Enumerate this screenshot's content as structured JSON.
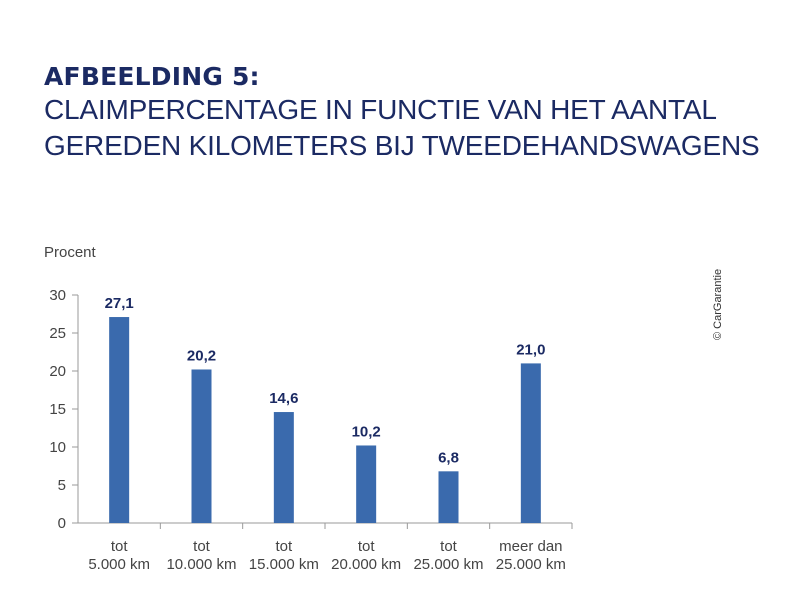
{
  "figure": {
    "number": "AFBEELDING 5:",
    "title_lines": [
      "CLAIMPERCENTAGE IN FUNCTIE VAN HET AANTAL",
      "GEREDEN KILOMETERS BIJ TWEEDEHANDSWAGENS"
    ],
    "credit": "© CarGarantie"
  },
  "colors": {
    "bar": "#3a6aad",
    "title": "#1b2a63",
    "axis": "#9a9a9a",
    "text": "#444444",
    "label": "#1b2a63"
  },
  "chart_data": {
    "type": "bar",
    "ylabel": "Procent",
    "ylim": [
      0,
      30
    ],
    "yticks": [
      0,
      5,
      10,
      15,
      20,
      25,
      30
    ],
    "categories": [
      [
        "tot",
        "5.000 km"
      ],
      [
        "tot",
        "10.000 km"
      ],
      [
        "tot",
        "15.000 km"
      ],
      [
        "tot",
        "20.000 km"
      ],
      [
        "tot",
        "25.000 km"
      ],
      [
        "meer dan",
        "25.000 km"
      ]
    ],
    "values": [
      27.1,
      20.2,
      14.6,
      10.2,
      6.8,
      21.0
    ],
    "value_labels": [
      "27,1",
      "20,2",
      "14,6",
      "10,2",
      "6,8",
      "21,0"
    ]
  }
}
